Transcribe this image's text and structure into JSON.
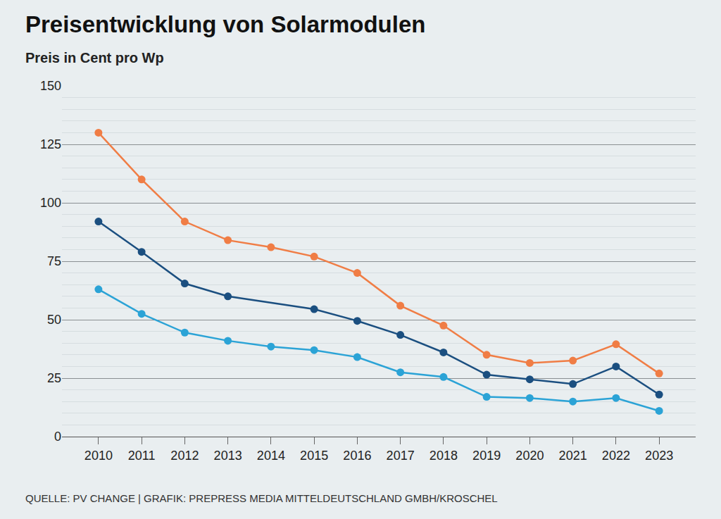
{
  "chart_data": {
    "type": "line",
    "title": "Preisentwicklung von Solarmodulen",
    "subtitle": "Preis in Cent pro Wp",
    "source": "QUELLE: PV CHANGE | GRAFIK: PREPRESS MEDIA MITTELDEUTSCHLAND GMBH/KROSCHEL",
    "categories": [
      "2010",
      "2011",
      "2012",
      "2013",
      "2014",
      "2015",
      "2016",
      "2017",
      "2018",
      "2019",
      "2020",
      "2021",
      "2022",
      "2023"
    ],
    "series": [
      {
        "color": "#f07d45",
        "marker": "circle",
        "values": [
          130,
          110,
          92,
          84,
          81,
          77,
          70,
          56,
          47.5,
          35,
          31.5,
          32.5,
          39.5,
          27
        ]
      },
      {
        "color": "#1b4f80",
        "marker": "circle",
        "values": [
          92,
          79,
          65.5,
          60,
          null,
          54.5,
          49.5,
          43.5,
          36,
          26.5,
          24.5,
          22.5,
          30,
          18
        ]
      },
      {
        "color": "#2ba3d6",
        "marker": "circle",
        "values": [
          63,
          52.5,
          44.5,
          41,
          38.5,
          37,
          34,
          27.5,
          25.5,
          17,
          16.5,
          15,
          16.5,
          11
        ]
      }
    ],
    "ylim": [
      0,
      150
    ],
    "yticks": [
      0,
      25,
      50,
      75,
      100,
      125,
      150
    ],
    "grid": true
  }
}
